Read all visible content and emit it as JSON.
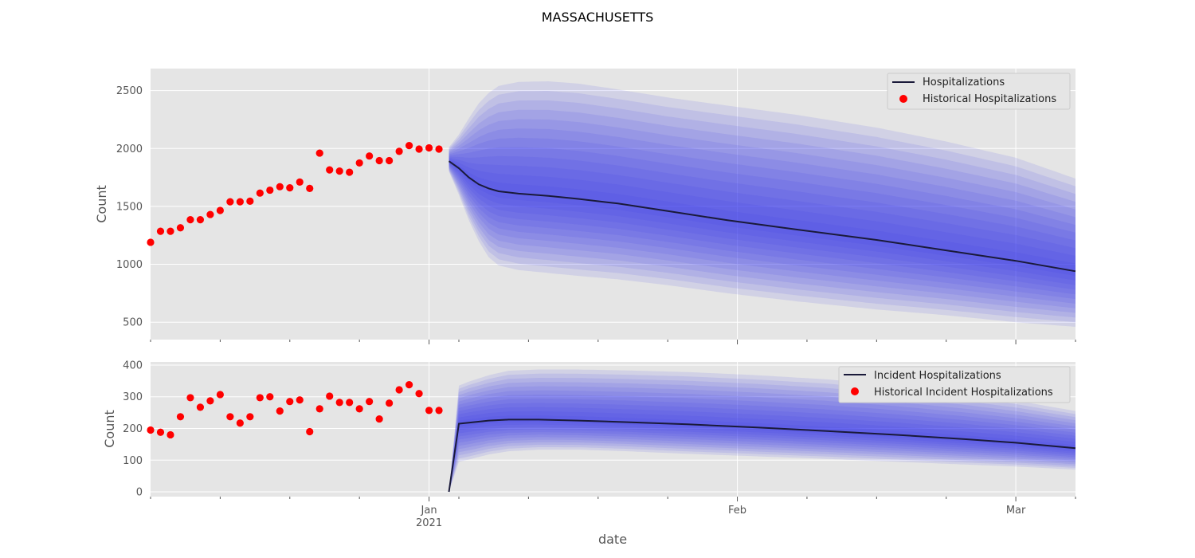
{
  "figure": {
    "title": "MASSACHUSETTS",
    "xlabel": "date",
    "colors": {
      "background": "#e5e5e5",
      "grid": "#ffffff",
      "band": "#3a3af0",
      "median": "#1a1a3a",
      "historical": "#ff0000"
    }
  },
  "chart_data": [
    {
      "type": "line",
      "title": "",
      "ylabel": "Count",
      "xlabel": "",
      "xlim": [
        "2020-12-04",
        "2021-03-07"
      ],
      "ylim": [
        350,
        2690
      ],
      "yticks": [
        500,
        1000,
        1500,
        2000,
        2500
      ],
      "grid": true,
      "legend_position": "top-right",
      "legend": [
        "Hospitalizations",
        "Historical Hospitalizations"
      ],
      "historical": {
        "name": "Historical Hospitalizations",
        "x": [
          "2020-12-04",
          "2020-12-05",
          "2020-12-06",
          "2020-12-07",
          "2020-12-08",
          "2020-12-09",
          "2020-12-10",
          "2020-12-11",
          "2020-12-12",
          "2020-12-13",
          "2020-12-14",
          "2020-12-15",
          "2020-12-16",
          "2020-12-17",
          "2020-12-18",
          "2020-12-19",
          "2020-12-20",
          "2020-12-21",
          "2020-12-22",
          "2020-12-23",
          "2020-12-24",
          "2020-12-25",
          "2020-12-26",
          "2020-12-27",
          "2020-12-28",
          "2020-12-29",
          "2020-12-30",
          "2020-12-31",
          "2021-01-01",
          "2021-01-02",
          "2021-01-03"
        ],
        "y": [
          1190,
          1285,
          1285,
          1315,
          1385,
          1385,
          1430,
          1465,
          1540,
          1540,
          1545,
          1615,
          1640,
          1670,
          1660,
          1710,
          1655,
          1960,
          1815,
          1805,
          1795,
          1875,
          1935,
          1895,
          1895,
          1975,
          2025,
          1995,
          2005,
          1995,
          null
        ]
      },
      "forecast": {
        "name": "Hospitalizations",
        "x": [
          "2021-01-03",
          "2021-01-04",
          "2021-01-05",
          "2021-01-06",
          "2021-01-07",
          "2021-01-08",
          "2021-01-10",
          "2021-01-13",
          "2021-01-16",
          "2021-01-20",
          "2021-01-25",
          "2021-01-31",
          "2021-02-07",
          "2021-02-15",
          "2021-02-22",
          "2021-03-01",
          "2021-03-07"
        ],
        "median": [
          1890,
          1830,
          1750,
          1690,
          1655,
          1630,
          1610,
          1590,
          1565,
          1525,
          1460,
          1380,
          1300,
          1210,
          1120,
          1030,
          940
        ],
        "outer_lower": [
          1800,
          1600,
          1380,
          1200,
          1060,
          990,
          950,
          925,
          900,
          870,
          820,
          750,
          680,
          610,
          560,
          500,
          460
        ],
        "outer_upper": [
          2010,
          2120,
          2260,
          2390,
          2480,
          2540,
          2575,
          2580,
          2560,
          2510,
          2440,
          2370,
          2290,
          2180,
          2060,
          1920,
          1740
        ]
      }
    },
    {
      "type": "line",
      "title": "",
      "ylabel": "Count",
      "xlabel": "date",
      "xlim": [
        "2020-12-04",
        "2021-03-07"
      ],
      "ylim": [
        -15,
        410
      ],
      "yticks": [
        0,
        100,
        200,
        300,
        400
      ],
      "xticks_major": [
        {
          "date": "2021-01-01",
          "label": "Jan",
          "sub": "2021"
        },
        {
          "date": "2021-02-01",
          "label": "Feb",
          "sub": ""
        },
        {
          "date": "2021-03-01",
          "label": "Mar",
          "sub": ""
        }
      ],
      "xticks_minor": [
        "2020-12-04",
        "2020-12-11",
        "2020-12-18",
        "2020-12-25",
        "2021-01-04",
        "2021-01-11",
        "2021-01-18",
        "2021-01-25",
        "2021-02-08",
        "2021-02-15",
        "2021-02-22",
        "2021-03-07"
      ],
      "grid": true,
      "legend_position": "top-right",
      "legend": [
        "Incident Hospitalizations",
        "Historical Incident Hospitalizations"
      ],
      "historical": {
        "name": "Historical Incident Hospitalizations",
        "x": [
          "2020-12-04",
          "2020-12-05",
          "2020-12-06",
          "2020-12-07",
          "2020-12-08",
          "2020-12-09",
          "2020-12-10",
          "2020-12-11",
          "2020-12-12",
          "2020-12-13",
          "2020-12-14",
          "2020-12-15",
          "2020-12-16",
          "2020-12-17",
          "2020-12-18",
          "2020-12-19",
          "2020-12-20",
          "2020-12-21",
          "2020-12-22",
          "2020-12-23",
          "2020-12-24",
          "2020-12-25",
          "2020-12-26",
          "2020-12-27",
          "2020-12-28",
          "2020-12-29",
          "2020-12-30",
          "2020-12-31",
          "2021-01-01",
          "2021-01-02"
        ],
        "y": [
          195,
          188,
          180,
          237,
          297,
          267,
          287,
          307,
          237,
          217,
          237,
          297,
          300,
          255,
          285,
          290,
          190,
          262,
          302,
          282,
          282,
          262,
          285,
          230,
          280,
          322,
          338,
          310,
          257,
          257
        ]
      },
      "forecast": {
        "name": "Incident Hospitalizations",
        "x": [
          "2021-01-03",
          "2021-01-04",
          "2021-01-05",
          "2021-01-07",
          "2021-01-09",
          "2021-01-12",
          "2021-01-16",
          "2021-01-21",
          "2021-01-27",
          "2021-02-03",
          "2021-02-10",
          "2021-02-17",
          "2021-02-24",
          "2021-03-01",
          "2021-03-07"
        ],
        "median": [
          0,
          215,
          218,
          225,
          228,
          228,
          225,
          220,
          213,
          203,
          192,
          180,
          166,
          155,
          138
        ],
        "outer_lower": [
          0,
          95,
          102,
          118,
          128,
          133,
          133,
          128,
          120,
          112,
          104,
          95,
          86,
          80,
          70
        ],
        "outer_upper": [
          0,
          335,
          348,
          368,
          382,
          386,
          386,
          383,
          378,
          368,
          355,
          335,
          310,
          288,
          255
        ]
      }
    }
  ]
}
